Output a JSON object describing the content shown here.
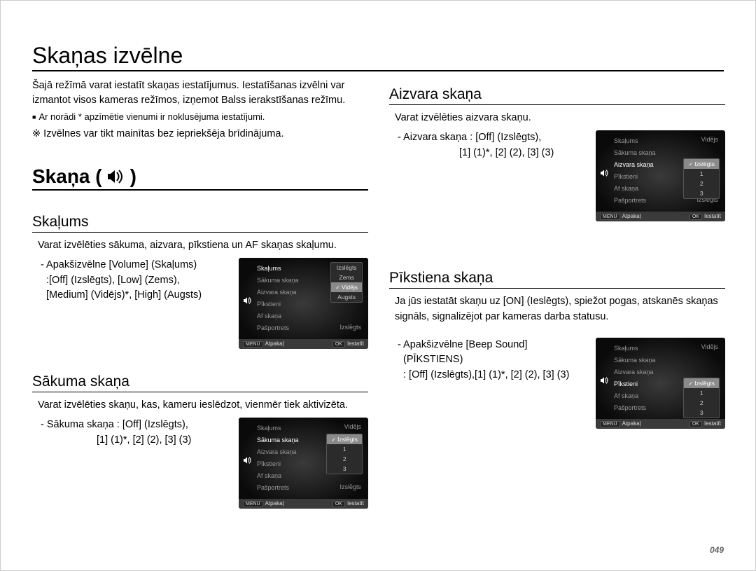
{
  "page": {
    "number": "049",
    "main_title": "Skaņas izvēlne",
    "intro_p1": "Šajā režīmā varat iestatīt skaņas iestatījumus. Iestatīšanas izvēlni var izmantot visos kameras režīmos, izņemot Balss ierakstīšanas režīmu.",
    "intro_bullet": "Ar norādi * apzīmētie vienumi ir noklusējuma iestatījumi.",
    "intro_note": "※ Izvēlnes var tikt mainītas bez iepriekšēja brīdinājuma.",
    "section_title": "Skaņa (",
    "section_title_close": ")"
  },
  "skaums": {
    "title": "Skaļums",
    "body": "Varat izvēlēties sākuma, aizvara, pīkstiena un AF skaņas skaļumu.",
    "opt1": "- Apakšizvēlne [Volume] (Skaļums)",
    "opt2": ":[Off] (Izslēgts), [Low] (Zems),",
    "opt3": "[Medium] (Vidējs)*, [High] (Augsts)"
  },
  "sakuma": {
    "title": "Sākuma skaņa",
    "body": "Varat izvēlēties skaņu, kas, kameru ieslēdzot, vienmēr tiek aktivizēta.",
    "opt1": "- Sākuma skaņa : [Off] (Izslēgts),",
    "opt2": "[1] (1)*, [2] (2), [3] (3)"
  },
  "aizvara": {
    "title": "Aizvara skaņa",
    "body": "Varat izvēlēties aizvara skaņu.",
    "opt1": "- Aizvara skaņa : [Off] (Izslēgts),",
    "opt2": "[1] (1)*, [2] (2), [3] (3)"
  },
  "pikstiena": {
    "title": "Pīkstiena skaņa",
    "body": "Ja jūs iestatāt skaņu uz [ON] (Ieslēgts), spiežot pogas, atskanēs skaņas signāls, signalizējot par kameras darba statusu.",
    "opt1": "- Apakšizvēlne [Beep Sound] (PĪKSTIENS)",
    "opt2": ": [Off] (Izslēgts),[1] (1)*, [2] (2), [3] (3)"
  },
  "shot_common": {
    "menu": [
      "Skaļums",
      "Sākuma skaņa",
      "Aizvara skaņa",
      "Pīkstieni",
      "Af skaņa",
      "Pašportrets"
    ],
    "footer_back": "Atpakaļ",
    "footer_set": "Iestatīt",
    "btn_menu": "MENU",
    "btn_ok": "OK",
    "right_val": "Vidējs",
    "right_off": "Izslēgts"
  },
  "shot_skaums": {
    "active_index": 0,
    "popup": [
      "Izslēgts",
      "Zems",
      "Vidējs",
      "Augsts"
    ],
    "selected_index": 2
  },
  "shot_sakuma": {
    "active_index": 1,
    "popup": [
      "Izslēgts",
      "1",
      "2",
      "3"
    ],
    "selected_index": 0
  },
  "shot_aizvara": {
    "active_index": 2,
    "popup": [
      "Izslēgts",
      "1",
      "2",
      "3"
    ],
    "selected_index": 0
  },
  "shot_pikstiena": {
    "active_index": 3,
    "popup": [
      "Izslēgts",
      "1",
      "2",
      "3"
    ],
    "selected_index": 0
  },
  "style": {
    "page_bg": "#ffffff",
    "text_color": "#000000",
    "rule_color": "#000000",
    "shot_bg_center": "#3a3a3a",
    "shot_bg_edge": "#0a0a0a",
    "shot_text_dim": "#989898",
    "shot_text_active": "#ffffff",
    "popup_bg": "#2b2b2b",
    "popup_sel_bg": "#8a8a8a",
    "footer_bg": "#3a3a3a"
  }
}
